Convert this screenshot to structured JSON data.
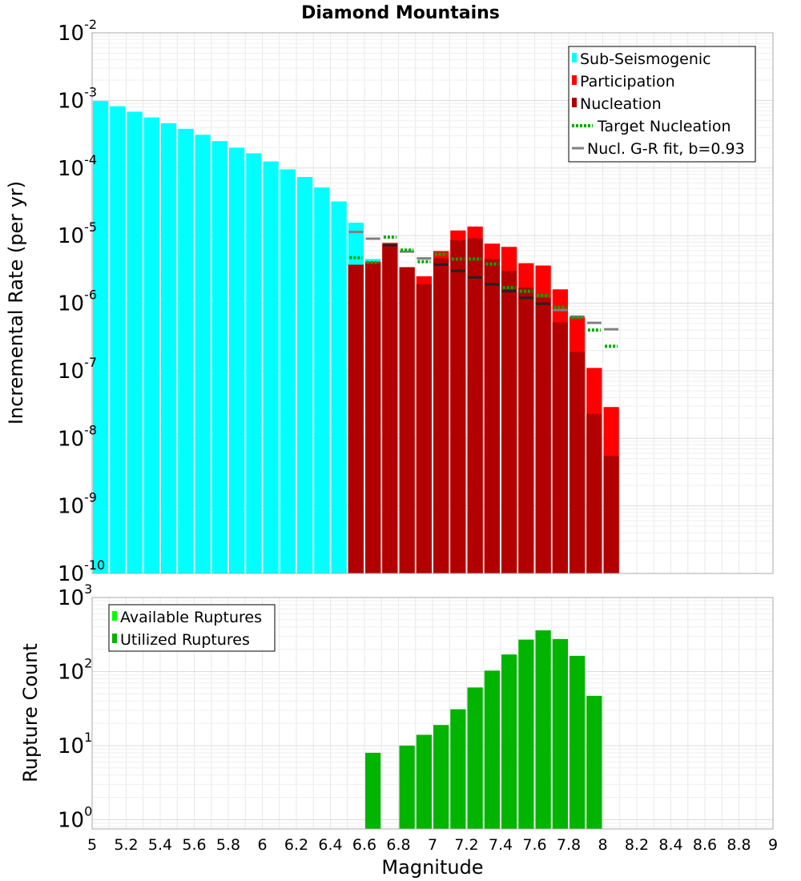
{
  "chart_data": [
    {
      "type": "bar",
      "title": "Diamond Mountains",
      "xlabel": "Magnitude",
      "ylabel": "Incremental Rate (per yr)",
      "yscale": "log",
      "ylim": [
        1e-10,
        0.01
      ],
      "xlim": [
        5,
        9
      ],
      "bin_width": 0.1,
      "x_tick_labels": [
        "5",
        "5.2",
        "5.4",
        "5.6",
        "5.8",
        "6",
        "6.2",
        "6.4",
        "6.6",
        "6.8",
        "7",
        "7.2",
        "7.4",
        "7.6",
        "7.8",
        "8",
        "8.2",
        "8.4",
        "8.6",
        "8.8",
        "9"
      ],
      "y_tick_labels": [
        {
          "base": "10",
          "exp": "-10",
          "value": 1e-10
        },
        {
          "base": "10",
          "exp": "-9",
          "value": 1e-09
        },
        {
          "base": "10",
          "exp": "-8",
          "value": 1e-08
        },
        {
          "base": "10",
          "exp": "-7",
          "value": 1e-07
        },
        {
          "base": "10",
          "exp": "-6",
          "value": 1e-06
        },
        {
          "base": "10",
          "exp": "-5",
          "value": 1e-05
        },
        {
          "base": "10",
          "exp": "-4",
          "value": 0.0001
        },
        {
          "base": "10",
          "exp": "-3",
          "value": 0.001
        },
        {
          "base": "10",
          "exp": "-2",
          "value": 0.01
        }
      ],
      "legend": {
        "placement": "top-right",
        "items": [
          {
            "label": "Sub-Seismogenic",
            "kind": "bar",
            "color": "#00ffff"
          },
          {
            "label": "Participation",
            "kind": "bar",
            "color": "#ff0000"
          },
          {
            "label": "Nucleation",
            "kind": "bar",
            "color": "#b20000"
          },
          {
            "label": "Target Nucleation",
            "kind": "dotted",
            "color": "#00aa00"
          },
          {
            "label": "Nucl. G-R fit, b=0.93",
            "kind": "line",
            "color": "#808080"
          }
        ]
      },
      "series": [
        {
          "name": "Sub-Seismogenic",
          "color": "#00ffff",
          "x": [
            5.05,
            5.15,
            5.25,
            5.35,
            5.45,
            5.55,
            5.65,
            5.75,
            5.85,
            5.95,
            6.05,
            6.15,
            6.25,
            6.35,
            6.45,
            6.55,
            6.65
          ],
          "values": [
            0.00098,
            0.00082,
            0.00068,
            0.00056,
            0.00046,
            0.00038,
            0.00031,
            0.00025,
            0.0002,
            0.000165,
            0.000125,
            9.55e-05,
            7.35e-05,
            5.15e-05,
            3.2e-05,
            1.55e-05,
            4.5e-06
          ]
        },
        {
          "name": "Participation",
          "color": "#ff0000",
          "x": [
            6.55,
            6.65,
            6.75,
            6.85,
            6.95,
            7.05,
            7.15,
            7.25,
            7.35,
            7.45,
            7.55,
            7.65,
            7.75,
            7.85,
            7.95,
            8.05
          ],
          "values": [
            3.7e-06,
            4.1e-06,
            7.8e-06,
            3.4e-06,
            2.5e-06,
            5.9e-06,
            1.19e-05,
            1.36e-05,
            7.6e-06,
            6.8e-06,
            3.9e-06,
            3.6e-06,
            1.6e-06,
            6.3e-07,
            1.1e-07,
            2.9e-08
          ]
        },
        {
          "name": "Nucleation",
          "color": "#b20000",
          "x": [
            6.55,
            6.65,
            6.75,
            6.85,
            6.95,
            7.05,
            7.15,
            7.25,
            7.35,
            7.45,
            7.55,
            7.65,
            7.75,
            7.85,
            7.95,
            8.05
          ],
          "values": [
            3.7e-06,
            3.9e-06,
            7.4e-06,
            3.4e-06,
            1.9e-06,
            4.6e-06,
            8.5e-06,
            9.1e-06,
            4.5e-06,
            3e-06,
            1.7e-06,
            1.2e-06,
            5.2e-07,
            1.9e-07,
            2.3e-08,
            5.5e-09
          ]
        },
        {
          "name": "Target Nucleation",
          "color": "#00aa00",
          "x": [
            6.55,
            6.65,
            6.75,
            6.85,
            6.95,
            7.05,
            7.15,
            7.25,
            7.35,
            7.45,
            7.55,
            7.65,
            7.75,
            7.85,
            7.95,
            8.05
          ],
          "values": [
            4.7e-06,
            4e-06,
            9.5e-06,
            6.1e-06,
            4.1e-06,
            5.3e-06,
            4.5e-06,
            4.5e-06,
            3.8e-06,
            1.7e-06,
            1.5e-06,
            1.3e-06,
            8.7e-07,
            6.1e-07,
            4e-07,
            2.3e-07
          ]
        },
        {
          "name": "Nucl. G-R fit, b=0.93",
          "color": "#808080",
          "x": [
            6.55,
            6.65,
            6.75,
            6.85,
            6.95,
            7.05,
            7.15,
            7.25,
            7.35,
            7.45,
            7.55,
            7.65,
            7.75,
            7.85,
            7.95,
            8.05
          ],
          "values": [
            1.13e-05,
            9e-06,
            7.2e-06,
            5.8e-06,
            4.6e-06,
            3.7e-06,
            3e-06,
            2.4e-06,
            1.9e-06,
            1.5e-06,
            1.2e-06,
            9.8e-07,
            7.9e-07,
            6.3e-07,
            5.1e-07,
            4.1e-07
          ]
        }
      ]
    },
    {
      "type": "bar",
      "xlabel": "Magnitude",
      "ylabel": "Rupture Count",
      "yscale": "log",
      "ylim": [
        0.75,
        1000
      ],
      "xlim": [
        5,
        9
      ],
      "bin_width": 0.1,
      "y_tick_labels": [
        {
          "base": "10",
          "exp": "0",
          "value": 1
        },
        {
          "base": "10",
          "exp": "1",
          "value": 10
        },
        {
          "base": "10",
          "exp": "2",
          "value": 100
        },
        {
          "base": "10",
          "exp": "3",
          "value": 1000
        }
      ],
      "legend": {
        "placement": "top-left",
        "items": [
          {
            "label": "Available Ruptures",
            "kind": "bar",
            "color": "#00ff00"
          },
          {
            "label": "Utilized Ruptures",
            "kind": "bar",
            "color": "#00b400"
          }
        ]
      },
      "series": [
        {
          "name": "Utilized Ruptures",
          "color": "#00b400",
          "x": [
            6.65,
            6.85,
            6.95,
            7.05,
            7.15,
            7.25,
            7.35,
            7.45,
            7.55,
            7.65,
            7.75,
            7.85,
            7.95
          ],
          "values": [
            8,
            10,
            14,
            19,
            31,
            61,
            103,
            170,
            270,
            360,
            275,
            163,
            47
          ]
        }
      ]
    }
  ]
}
